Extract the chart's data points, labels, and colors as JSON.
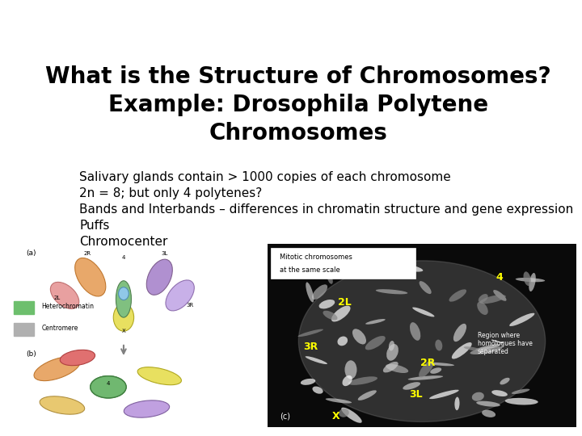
{
  "title_line1": "What is the Structure of Chromosomes?",
  "title_line2": "Example: Drosophila Polytene",
  "title_line3": "Chromosomes",
  "title_fontsize": 20,
  "title_fontweight": "bold",
  "body_lines": [
    "Salivary glands contain > 1000 copies of each chromosome",
    "2n = 8; but only 4 polytenes?",
    "Bands and Interbands – differences in chromatin structure and gene expression",
    "Puffs",
    "Chromocenter"
  ],
  "body_fontsize": 11,
  "background_color": "#ffffff",
  "text_color": "#000000",
  "title_color": "#000000"
}
